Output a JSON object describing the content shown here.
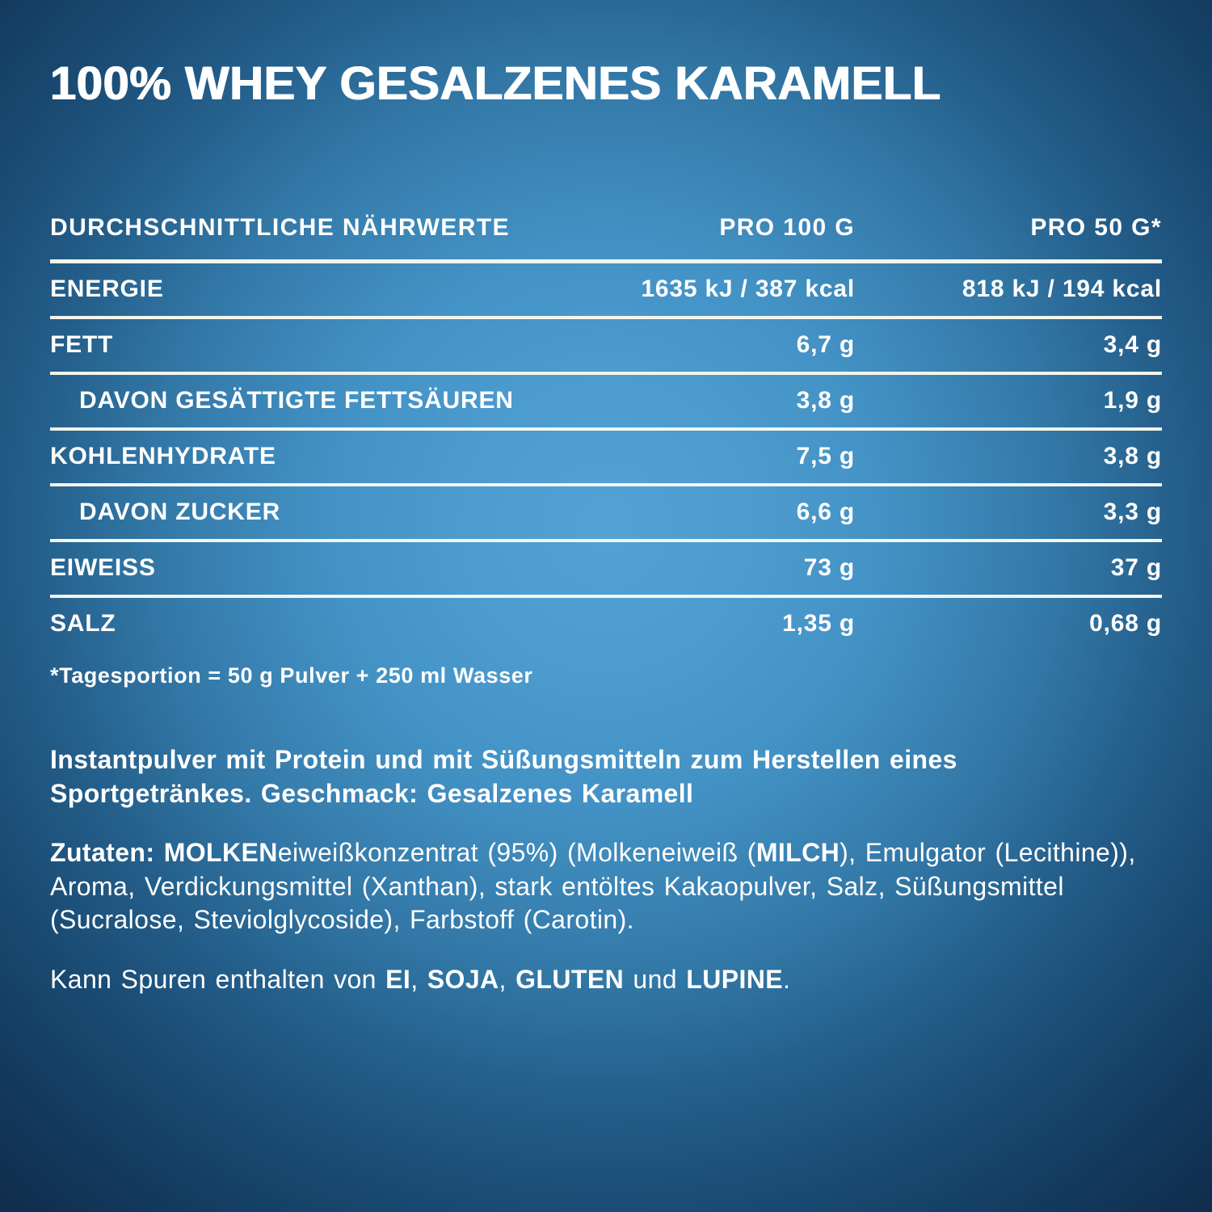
{
  "title": "100% WHEY GESALZENES KARAMELL",
  "nutrition_table": {
    "headers": {
      "label": "DURCHSCHNITTLICHE NÄHRWERTE",
      "per_100g": "PRO 100 G",
      "per_50g": "PRO 50 G*"
    },
    "rows": [
      {
        "label": "ENERGIE",
        "per_100g": "1635 kJ / 387 kcal",
        "per_50g": "818 kJ / 194 kcal",
        "indent": false
      },
      {
        "label": "FETT",
        "per_100g": "6,7 g",
        "per_50g": "3,4 g",
        "indent": false
      },
      {
        "label": "DAVON GESÄTTIGTE FETTSÄUREN",
        "per_100g": "3,8 g",
        "per_50g": "1,9 g",
        "indent": true
      },
      {
        "label": "KOHLENHYDRATE",
        "per_100g": "7,5 g",
        "per_50g": "3,8 g",
        "indent": false
      },
      {
        "label": "DAVON ZUCKER",
        "per_100g": "6,6 g",
        "per_50g": "3,3 g",
        "indent": true
      },
      {
        "label": "EIWEISS",
        "per_100g": "73 g",
        "per_50g": "37 g",
        "indent": false
      },
      {
        "label": "SALZ",
        "per_100g": "1,35 g",
        "per_50g": "0,68 g",
        "indent": false
      }
    ],
    "footnote": "*Tagesportion = 50 g Pulver + 250 ml Wasser"
  },
  "description_segments": [
    {
      "bold": true,
      "text": "Instantpulver mit Protein und mit Süßungsmitteln zum Herstellen eines Sportgetränkes. Geschmack: Gesalzenes Karamell"
    }
  ],
  "ingredients_segments": [
    {
      "bold": true,
      "text": "Zutaten: MOLKEN"
    },
    {
      "bold": false,
      "text": "eiweißkonzentrat (95%) (Molkeneiweiß ("
    },
    {
      "bold": true,
      "text": "MILCH"
    },
    {
      "bold": false,
      "text": "), Emulgator (Lecithine)), Aroma, Verdickungsmittel (Xanthan), stark entöltes Kakaopulver, Salz, Süßungsmittel (Sucralose, Steviolglycoside), Farbstoff (Carotin)."
    }
  ],
  "allergen_segments": [
    {
      "bold": false,
      "text": "Kann Spuren enthalten von "
    },
    {
      "bold": true,
      "text": "EI"
    },
    {
      "bold": false,
      "text": ", "
    },
    {
      "bold": true,
      "text": "SOJA"
    },
    {
      "bold": false,
      "text": ", "
    },
    {
      "bold": true,
      "text": "GLUTEN"
    },
    {
      "bold": false,
      "text": " und "
    },
    {
      "bold": true,
      "text": "LUPINE"
    },
    {
      "bold": false,
      "text": "."
    }
  ],
  "colors": {
    "background_center": "#4f9fd3",
    "background_edge": "#112f4f",
    "text": "#ffffff",
    "divider": "#f3f5ec"
  }
}
